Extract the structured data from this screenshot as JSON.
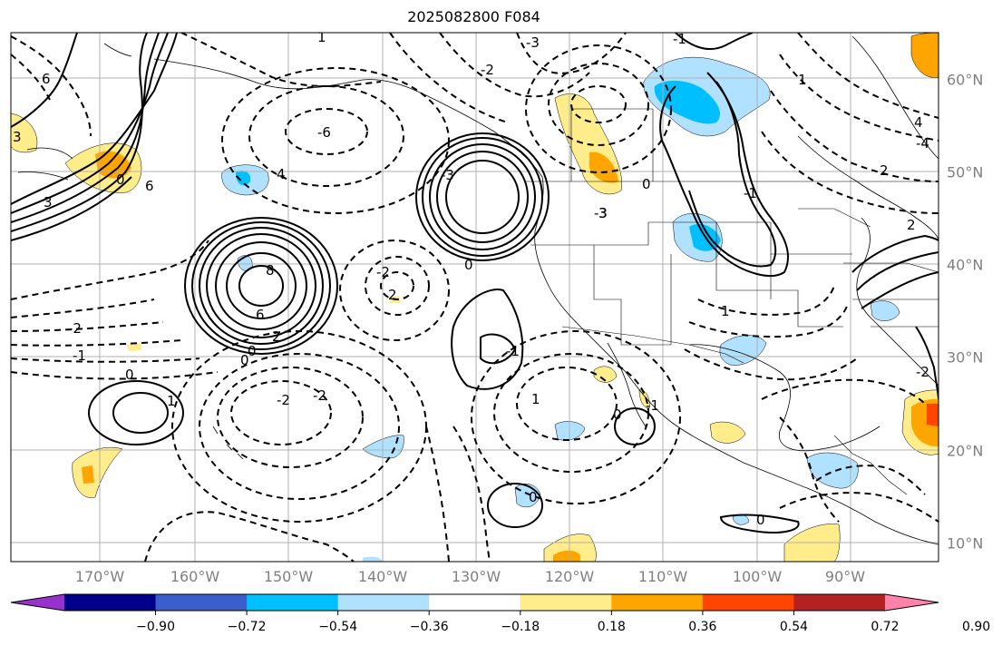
{
  "title": "2025082800 F084",
  "lon_labels": [
    "170°W",
    "160°W",
    "150°W",
    "140°W",
    "130°W",
    "120°W",
    "110°W",
    "100°W",
    "90°W"
  ],
  "lat_labels": [
    "60°N",
    "50°N",
    "40°N",
    "30°N",
    "20°N",
    "10°N"
  ],
  "colorbar": {
    "tick_labels": [
      "−0.90",
      "−0.72",
      "−0.54",
      "−0.36",
      "−0.18",
      "0.18",
      "0.36",
      "0.54",
      "0.72",
      "0.90"
    ],
    "levels": [
      -0.9,
      -0.72,
      -0.54,
      -0.36,
      -0.18,
      0.18,
      0.36,
      0.54,
      0.72,
      0.9
    ],
    "colors": [
      "#9932cc",
      "#00008b",
      "#3a5fcd",
      "#00bfff",
      "#b0e2ff",
      "#ffffff",
      "#ffec8b",
      "#ffa500",
      "#ff4500",
      "#b22222",
      "#ff82ab"
    ],
    "extend": "both"
  },
  "contour_labels": [
    "1",
    "3",
    "6",
    "-3",
    "0",
    "-2",
    "3",
    "6",
    "-6",
    "4",
    "-2",
    "-3",
    "2",
    "1",
    "4",
    "8",
    "6",
    "2",
    "0",
    "0",
    "-2",
    "-1",
    "0",
    "1",
    "-2",
    "-2",
    "0",
    "-1",
    "1",
    "0",
    "-1",
    "3",
    "-3",
    "0",
    "-1",
    "-4",
    "2",
    "2",
    "0",
    "-2",
    "-1",
    "1",
    "0"
  ]
}
